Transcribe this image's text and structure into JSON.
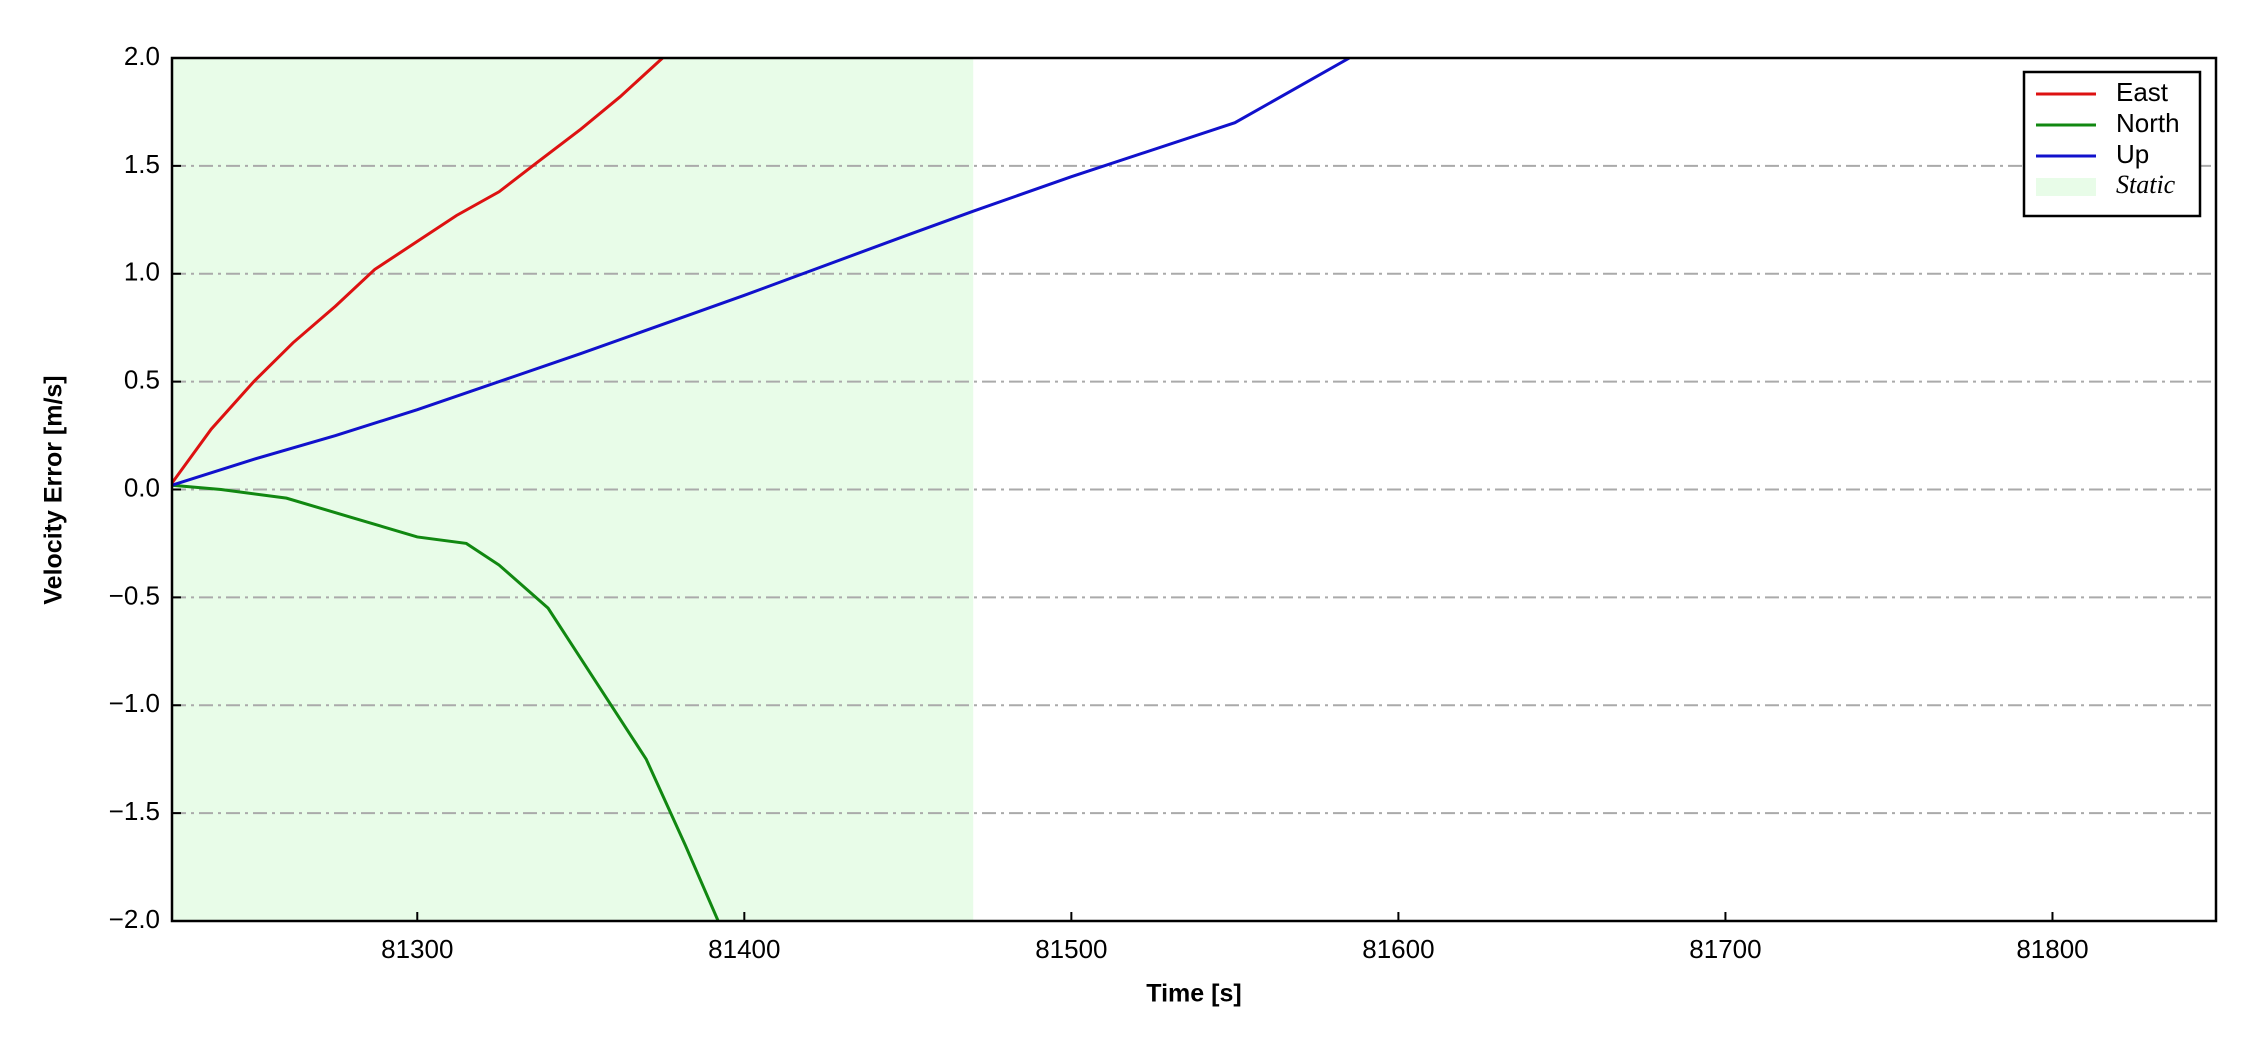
{
  "chart_data": {
    "type": "line",
    "xlabel": "Time [s]",
    "ylabel": "Velocity Error [m/s]",
    "xlim": [
      81225,
      81850
    ],
    "ylim": [
      -2,
      2
    ],
    "xticks": [
      81300,
      81400,
      81500,
      81600,
      81700,
      81800
    ],
    "yticks": [
      {
        "value": -2,
        "label": "−2.0"
      },
      {
        "value": -1.5,
        "label": "−1.5"
      },
      {
        "value": -1,
        "label": "−1.0"
      },
      {
        "value": -0.5,
        "label": "−0.5"
      },
      {
        "value": 0,
        "label": "0.0"
      },
      {
        "value": 0.5,
        "label": "0.5"
      },
      {
        "value": 1,
        "label": "1.0"
      },
      {
        "value": 1.5,
        "label": "1.5"
      },
      {
        "value": 2,
        "label": "2.0"
      }
    ],
    "grid": true,
    "legend": "upper right",
    "spans": [
      {
        "name": "Static",
        "xmin": 81225,
        "xmax": 81470,
        "color": "#e8fce8"
      }
    ],
    "series": [
      {
        "name": "East",
        "color": "#dd1111",
        "x": [
          81225,
          81237,
          81250,
          81262,
          81275,
          81287,
          81300,
          81312,
          81325,
          81337,
          81350,
          81362,
          81375
        ],
        "values": [
          0.03,
          0.28,
          0.5,
          0.68,
          0.85,
          1.02,
          1.15,
          1.27,
          1.38,
          1.52,
          1.67,
          1.82,
          2.0
        ]
      },
      {
        "name": "North",
        "color": "#118811",
        "x": [
          81225,
          81240,
          81260,
          81280,
          81300,
          81315,
          81325,
          81340,
          81355,
          81370,
          81382,
          81392
        ],
        "values": [
          0.02,
          0.0,
          -0.04,
          -0.13,
          -0.22,
          -0.25,
          -0.35,
          -0.55,
          -0.9,
          -1.25,
          -1.65,
          -2.0
        ]
      },
      {
        "name": "Up",
        "color": "#1111cc",
        "x": [
          81225,
          81250,
          81275,
          81300,
          81350,
          81400,
          81450,
          81470,
          81500,
          81550,
          81585
        ],
        "values": [
          0.02,
          0.14,
          0.25,
          0.37,
          0.63,
          0.9,
          1.18,
          1.29,
          1.45,
          1.7,
          2.0
        ]
      }
    ]
  }
}
